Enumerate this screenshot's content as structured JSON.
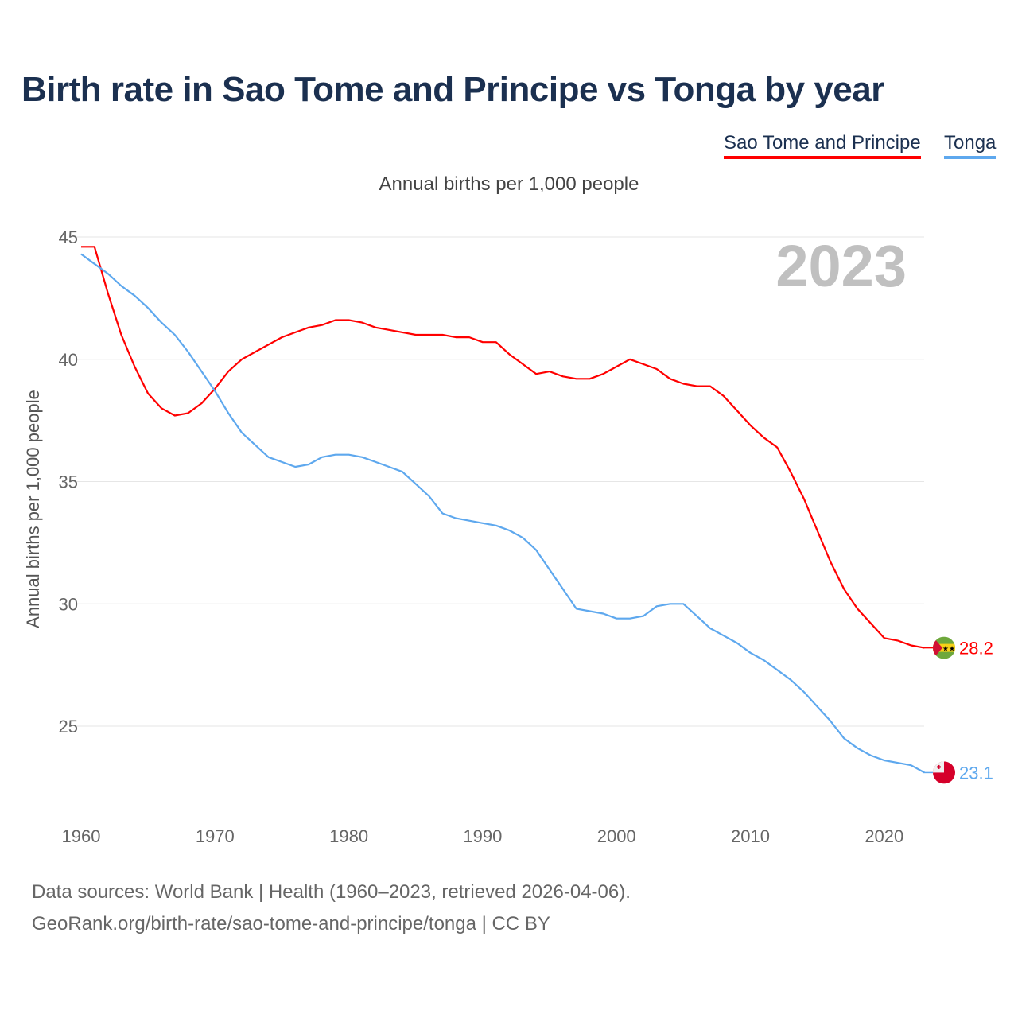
{
  "chart_data": {
    "type": "line",
    "title": "Birth rate in Sao Tome and Principe vs Tonga by year",
    "subtitle": "Annual births per 1,000 people",
    "ylabel": "Annual births per 1,000 people",
    "xlabel": "",
    "ylim": [
      22,
      45
    ],
    "xlim": [
      1960,
      2023
    ],
    "yticks": [
      "25",
      "30",
      "35",
      "40",
      "45"
    ],
    "xticks": [
      "1960",
      "1970",
      "1980",
      "1990",
      "2000",
      "2010",
      "2020"
    ],
    "year_label": "2023",
    "legend_placement": "top-right",
    "grid": true,
    "x": [
      1960,
      1961,
      1962,
      1963,
      1964,
      1965,
      1966,
      1967,
      1968,
      1969,
      1970,
      1971,
      1972,
      1973,
      1974,
      1975,
      1976,
      1977,
      1978,
      1979,
      1980,
      1981,
      1982,
      1983,
      1984,
      1985,
      1986,
      1987,
      1988,
      1989,
      1990,
      1991,
      1992,
      1993,
      1994,
      1995,
      1996,
      1997,
      1998,
      1999,
      2000,
      2001,
      2002,
      2003,
      2004,
      2005,
      2006,
      2007,
      2008,
      2009,
      2010,
      2011,
      2012,
      2013,
      2014,
      2015,
      2016,
      2017,
      2018,
      2019,
      2020,
      2021,
      2022,
      2023
    ],
    "series": [
      {
        "name": "Sao Tome and Principe",
        "color": "#ff0000",
        "end_label": "28.2",
        "values": [
          44.6,
          44.6,
          42.7,
          41.0,
          39.7,
          38.6,
          38.0,
          37.7,
          37.8,
          38.2,
          38.8,
          39.5,
          40.0,
          40.3,
          40.6,
          40.9,
          41.1,
          41.3,
          41.4,
          41.6,
          41.6,
          41.5,
          41.3,
          41.2,
          41.1,
          41.0,
          41.0,
          41.0,
          40.9,
          40.9,
          40.7,
          40.7,
          40.2,
          39.8,
          39.4,
          39.5,
          39.3,
          39.2,
          39.2,
          39.4,
          39.7,
          40.0,
          39.8,
          39.6,
          39.2,
          39.0,
          38.9,
          38.9,
          38.5,
          37.9,
          37.3,
          36.8,
          36.4,
          35.4,
          34.3,
          33.0,
          31.7,
          30.6,
          29.8,
          29.2,
          28.6,
          28.5,
          28.3,
          28.2
        ]
      },
      {
        "name": "Tonga",
        "color": "#5ea8ee",
        "end_label": "23.1",
        "values": [
          44.3,
          43.9,
          43.5,
          43.0,
          42.6,
          42.1,
          41.5,
          41.0,
          40.3,
          39.5,
          38.7,
          37.8,
          37.0,
          36.5,
          36.0,
          35.8,
          35.6,
          35.7,
          36.0,
          36.1,
          36.1,
          36.0,
          35.8,
          35.6,
          35.4,
          34.9,
          34.4,
          33.7,
          33.5,
          33.4,
          33.3,
          33.2,
          33.0,
          32.7,
          32.2,
          31.4,
          30.6,
          29.8,
          29.7,
          29.6,
          29.4,
          29.4,
          29.5,
          29.9,
          30.0,
          30.0,
          29.5,
          29.0,
          28.7,
          28.4,
          28.0,
          27.7,
          27.3,
          26.9,
          26.4,
          25.8,
          25.2,
          24.5,
          24.1,
          23.8,
          23.6,
          23.5,
          23.4,
          23.1
        ]
      }
    ]
  },
  "footer": {
    "line1": "Data sources: World Bank | Health (1960–2023, retrieved 2026-04-06).",
    "line2": "GeoRank.org/birth-rate/sao-tome-and-principe/tonga | CC BY"
  }
}
